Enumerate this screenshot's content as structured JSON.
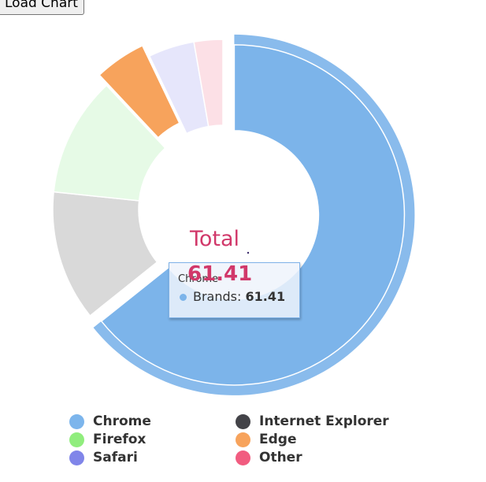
{
  "toolbar": {
    "load_label": "Load Chart"
  },
  "colors": {
    "center_text": "#d1386a",
    "tooltip_border": "#7fb2e8"
  },
  "chart_data": {
    "type": "pie",
    "variant": "donut",
    "series_name": "Brands",
    "center": {
      "label": "Total",
      "value": "61.41"
    },
    "tooltip": {
      "title": "Chrome",
      "series": "Brands",
      "value": "61.41"
    },
    "slices": [
      {
        "name": "Chrome",
        "value": 61.41,
        "fill": "#7cb4ea",
        "sliced": true,
        "hovered": true
      },
      {
        "name": "Internet Explorer",
        "value": 11.84,
        "fill": "#d9d9d9",
        "sliced": false,
        "hovered": false
      },
      {
        "name": "Firefox",
        "value": 10.85,
        "fill": "#e6fae6",
        "sliced": false,
        "hovered": false
      },
      {
        "name": "Edge",
        "value": 4.67,
        "fill": "#f7a35c",
        "sliced": true,
        "hovered": false
      },
      {
        "name": "Safari",
        "value": 4.18,
        "fill": "#e6e6fb",
        "sliced": false,
        "hovered": false
      },
      {
        "name": "Other",
        "value": 2.61,
        "fill": "#fce0e6",
        "sliced": false,
        "hovered": false
      }
    ],
    "legend": {
      "placement": "bottom",
      "items": [
        {
          "name": "Chrome",
          "color": "#7cb5ec"
        },
        {
          "name": "Internet Explorer",
          "color": "#434348"
        },
        {
          "name": "Firefox",
          "color": "#90ed7d"
        },
        {
          "name": "Edge",
          "color": "#f7a35c"
        },
        {
          "name": "Safari",
          "color": "#8085e9"
        },
        {
          "name": "Other",
          "color": "#f15c80"
        }
      ]
    }
  }
}
